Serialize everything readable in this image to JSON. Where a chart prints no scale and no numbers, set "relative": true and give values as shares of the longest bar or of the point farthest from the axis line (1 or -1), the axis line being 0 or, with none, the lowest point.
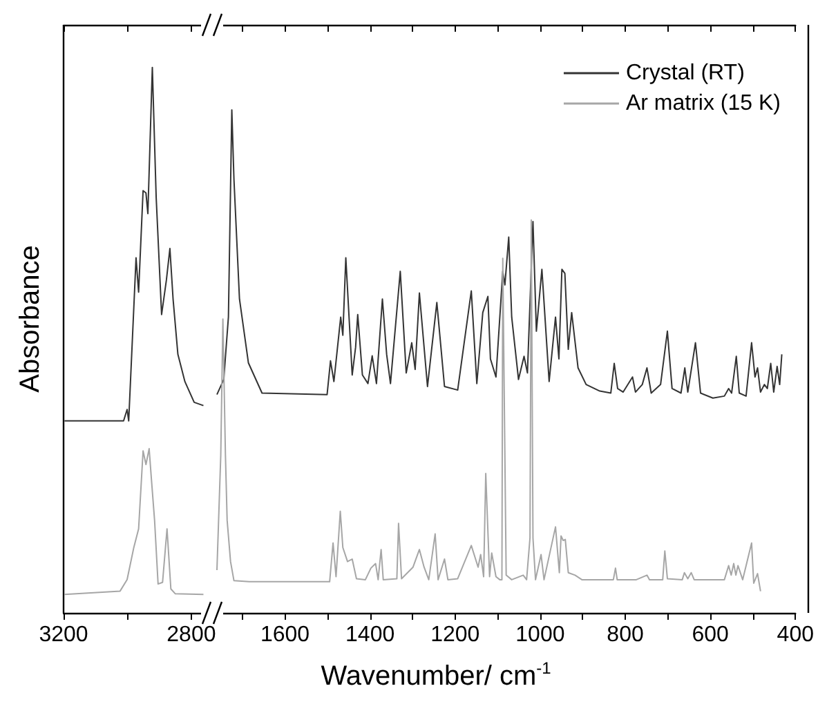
{
  "chart_data": [
    {
      "type": "line",
      "relative": true,
      "ylabel": "Absorbance",
      "xlim": [
        3200,
        2750
      ],
      "xticks": [
        3200,
        {
          "value": 3000,
          "label": null
        },
        2800
      ],
      "series": [
        {
          "color": "#333333",
          "x": [
            3197,
            3012,
            3001,
            2996,
            2973,
            2965,
            2951,
            2942,
            2936,
            2922,
            2910,
            2893,
            2878,
            2867,
            2857,
            2842,
            2820,
            2791,
            2762
          ],
          "values": [
            0.352,
            0.352,
            0.373,
            0.352,
            0.651,
            0.588,
            0.774,
            0.77,
            0.732,
            1.0,
            0.762,
            0.547,
            0.61,
            0.668,
            0.575,
            0.474,
            0.424,
            0.386,
            0.38
          ]
        },
        {
          "color": "#a6a6a6",
          "x": [
            3197,
            3023,
            3001,
            2980,
            2965,
            2951,
            2942,
            2932,
            2925,
            2915,
            2904,
            2890,
            2876,
            2864,
            2850,
            2762
          ],
          "values": [
            0.034,
            0.04,
            0.061,
            0.12,
            0.154,
            0.297,
            0.272,
            0.301,
            0.246,
            0.17,
            0.053,
            0.056,
            0.154,
            0.044,
            0.035,
            0.034
          ]
        }
      ]
    },
    {
      "type": "line",
      "relative": true,
      "xlabel": "Wavenumber/ cm$^{-1}$",
      "legend": "top right",
      "xlim": [
        1760,
        400
      ],
      "xticks": [
        {
          "value": 1700,
          "label": null
        },
        1600,
        {
          "value": 1500,
          "label": null
        },
        1400,
        {
          "value": 1300,
          "label": null
        },
        1200,
        {
          "value": 1100,
          "label": null
        },
        1000,
        {
          "value": 900,
          "label": null
        },
        800,
        {
          "value": 700,
          "label": null
        },
        600,
        {
          "value": 500,
          "label": null
        },
        400
      ],
      "series": [
        {
          "name": "Crystal (RT)",
          "color": "#333333",
          "x": [
            1760,
            1744,
            1733,
            1725,
            1720,
            1707,
            1686,
            1654,
            1501,
            1493,
            1485,
            1469,
            1464,
            1457,
            1442,
            1434,
            1429,
            1418,
            1405,
            1395,
            1385,
            1371,
            1361,
            1352,
            1329,
            1315,
            1302,
            1294,
            1284,
            1265,
            1243,
            1225,
            1194,
            1162,
            1149,
            1135,
            1123,
            1117,
            1104,
            1088,
            1083,
            1074,
            1067,
            1051,
            1038,
            1030,
            1017,
            1009,
            996,
            979,
            964,
            956,
            949,
            942,
            934,
            926,
            911,
            892,
            860,
            834,
            826,
            818,
            805,
            783,
            776,
            760,
            749,
            739,
            717,
            701,
            690,
            669,
            660,
            653,
            635,
            623,
            594,
            567,
            557,
            550,
            539,
            532,
            516,
            503,
            495,
            489,
            482,
            473,
            466,
            458,
            451,
            443,
            437,
            432
          ],
          "values": [
            0.434,
            0.464,
            0.588,
            1.0,
            0.862,
            0.624,
            0.497,
            0.437,
            0.434,
            0.501,
            0.46,
            0.588,
            0.552,
            0.706,
            0.473,
            0.528,
            0.593,
            0.473,
            0.456,
            0.511,
            0.456,
            0.624,
            0.514,
            0.456,
            0.679,
            0.477,
            0.537,
            0.484,
            0.636,
            0.45,
            0.617,
            0.45,
            0.443,
            0.64,
            0.456,
            0.597,
            0.629,
            0.505,
            0.469,
            0.679,
            0.652,
            0.747,
            0.588,
            0.464,
            0.51,
            0.477,
            0.778,
            0.56,
            0.683,
            0.46,
            0.588,
            0.505,
            0.683,
            0.675,
            0.524,
            0.597,
            0.487,
            0.454,
            0.441,
            0.437,
            0.496,
            0.446,
            0.439,
            0.469,
            0.439,
            0.454,
            0.487,
            0.437,
            0.454,
            0.56,
            0.446,
            0.437,
            0.487,
            0.439,
            0.537,
            0.437,
            0.427,
            0.431,
            0.446,
            0.437,
            0.51,
            0.437,
            0.431,
            0.537,
            0.469,
            0.487,
            0.439,
            0.454,
            0.446,
            0.496,
            0.439,
            0.49,
            0.454,
            0.514
          ]
        },
        {
          "name": "Ar matrix (15 K)",
          "color": "#a6a6a6",
          "x": [
            1760,
            1751,
            1746,
            1740,
            1736,
            1728,
            1720,
            1684,
            1495,
            1487,
            1480,
            1470,
            1464,
            1453,
            1442,
            1432,
            1411,
            1398,
            1387,
            1381,
            1374,
            1369,
            1337,
            1333,
            1326,
            1299,
            1284,
            1273,
            1262,
            1247,
            1240,
            1225,
            1217,
            1194,
            1162,
            1146,
            1140,
            1133,
            1128,
            1119,
            1114,
            1104,
            1095,
            1090,
            1088,
            1080,
            1067,
            1040,
            1032,
            1024,
            1021,
            1017,
            1011,
            998,
            991,
            964,
            955,
            951,
            946,
            941,
            934,
            918,
            902,
            828,
            823,
            819,
            774,
            749,
            743,
            712,
            707,
            701,
            666,
            661,
            653,
            645,
            638,
            567,
            557,
            551,
            545,
            540,
            535,
            524,
            503,
            498,
            489,
            482
          ],
          "values": [
            0.085,
            0.313,
            0.584,
            0.313,
            0.184,
            0.102,
            0.064,
            0.062,
            0.062,
            0.139,
            0.072,
            0.202,
            0.13,
            0.102,
            0.107,
            0.068,
            0.066,
            0.089,
            0.098,
            0.066,
            0.126,
            0.066,
            0.068,
            0.178,
            0.068,
            0.091,
            0.126,
            0.091,
            0.066,
            0.157,
            0.066,
            0.107,
            0.066,
            0.068,
            0.134,
            0.091,
            0.116,
            0.072,
            0.277,
            0.072,
            0.119,
            0.072,
            0.066,
            0.066,
            0.705,
            0.075,
            0.066,
            0.075,
            0.066,
            0.149,
            0.781,
            0.149,
            0.066,
            0.116,
            0.066,
            0.171,
            0.08,
            0.153,
            0.144,
            0.146,
            0.08,
            0.075,
            0.066,
            0.066,
            0.089,
            0.066,
            0.066,
            0.075,
            0.066,
            0.066,
            0.123,
            0.068,
            0.066,
            0.08,
            0.068,
            0.08,
            0.066,
            0.066,
            0.094,
            0.075,
            0.098,
            0.075,
            0.094,
            0.066,
            0.139,
            0.059,
            0.078,
            0.043
          ]
        }
      ]
    }
  ]
}
